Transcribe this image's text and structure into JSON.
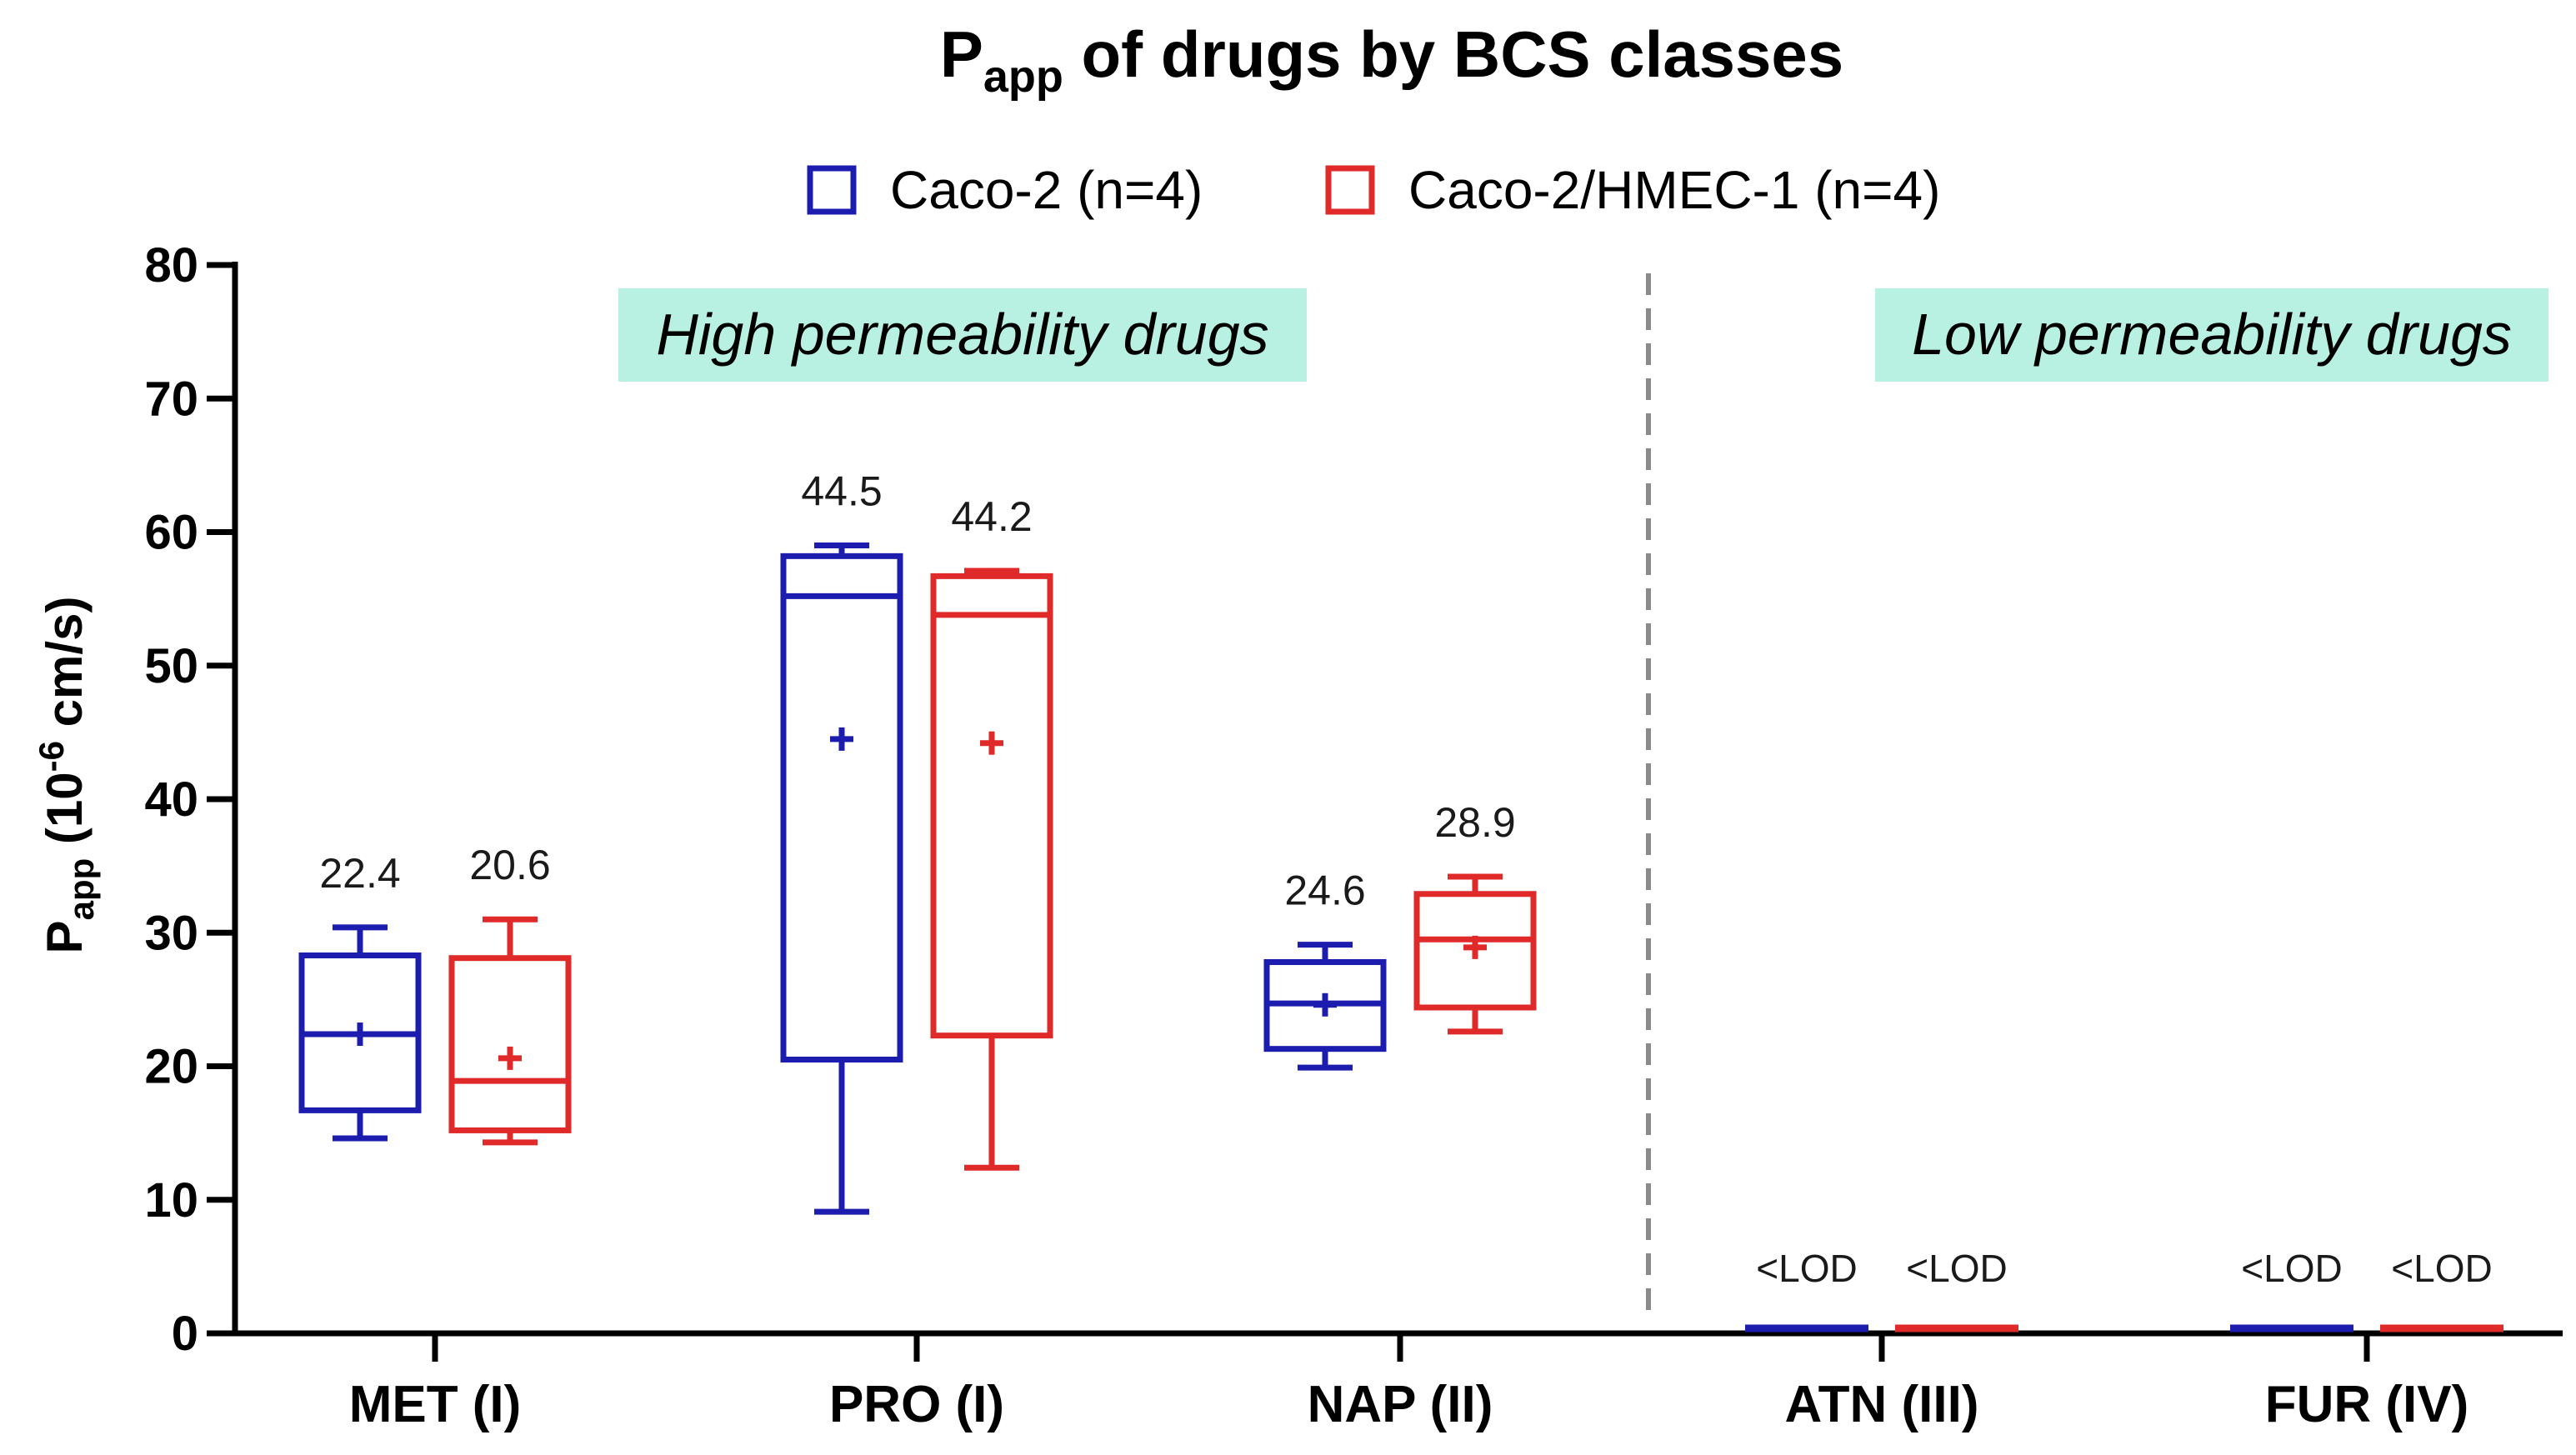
{
  "chart_data": {
    "type": "box",
    "title": {
      "main": "P",
      "sub": "app",
      "rest": " of drugs by BCS classes"
    },
    "ylabel": {
      "main": "P",
      "sub": "app",
      "mid": " (10",
      "sup": "-6",
      "rest": " cm/s)"
    },
    "xlabel": "",
    "ylim": [
      0,
      80
    ],
    "yticks": [
      0,
      10,
      20,
      30,
      40,
      50,
      60,
      70,
      80
    ],
    "grid": false,
    "legend_position": "top-center",
    "categories": [
      "MET (I)",
      "PRO (I)",
      "NAP (II)",
      "ATN (III)",
      "FUR (IV)"
    ],
    "divider_after_category": 2,
    "regions": [
      {
        "label": "High permeability drugs",
        "color": "#b8f0e1"
      },
      {
        "label": "Low permeability drugs",
        "color": "#b8f0e1"
      }
    ],
    "series": [
      {
        "name": "Caco-2 (n=4)",
        "color": "#1c1caf",
        "boxes": [
          {
            "min": 14.6,
            "q1": 16.7,
            "median": 22.4,
            "q3": 28.3,
            "max": 30.4,
            "mean": 22.4,
            "mean_label": "22.4"
          },
          {
            "min": 9.1,
            "q1": 20.5,
            "median": 55.2,
            "q3": 58.2,
            "max": 59.0,
            "mean": 44.5,
            "mean_label": "44.5"
          },
          {
            "min": 19.9,
            "q1": 21.3,
            "median": 24.7,
            "q3": 27.8,
            "max": 29.1,
            "mean": 24.6,
            "mean_label": "24.6"
          },
          {
            "lod": true,
            "lod_label": "<LOD"
          },
          {
            "lod": true,
            "lod_label": "<LOD"
          }
        ]
      },
      {
        "name": "Caco-2/HMEC-1 (n=4)",
        "color": "#e02a2a",
        "boxes": [
          {
            "min": 14.3,
            "q1": 15.2,
            "median": 18.9,
            "q3": 28.1,
            "max": 31.0,
            "mean": 20.6,
            "mean_label": "20.6"
          },
          {
            "min": 12.4,
            "q1": 22.3,
            "median": 53.8,
            "q3": 56.7,
            "max": 57.1,
            "mean": 44.2,
            "mean_label": "44.2"
          },
          {
            "min": 22.6,
            "q1": 24.4,
            "median": 29.5,
            "q3": 32.9,
            "max": 34.2,
            "mean": 28.9,
            "mean_label": "28.9"
          },
          {
            "lod": true,
            "lod_label": "<LOD"
          },
          {
            "lod": true,
            "lod_label": "<LOD"
          }
        ]
      }
    ]
  }
}
